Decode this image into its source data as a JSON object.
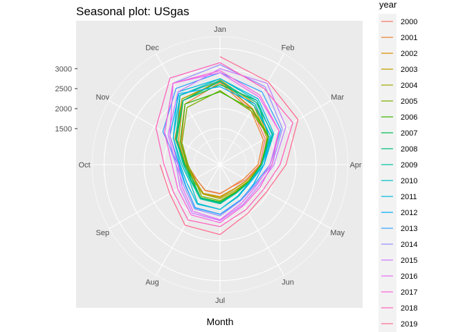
{
  "chart_data": {
    "type": "line",
    "coord": "polar",
    "title": "Seasonal plot: USgas",
    "xlabel": "Month",
    "ylabel": "",
    "legend_title": "year",
    "legend_position": "right",
    "grid": true,
    "rlim": [
      600,
      3800
    ],
    "r_ticks": [
      1500,
      2000,
      2500,
      3000
    ],
    "categories": [
      "Jan",
      "Feb",
      "Mar",
      "Apr",
      "May",
      "Jun",
      "Jul",
      "Aug",
      "Sep",
      "Oct",
      "Nov",
      "Dec"
    ],
    "series": [
      {
        "name": "2000",
        "color": "#F8766D",
        "values": [
          2700,
          2200,
          1900,
          1600,
          1350,
          1230,
          1320,
          1340,
          1300,
          1460,
          1850,
          2600
        ]
      },
      {
        "name": "2001",
        "color": "#EA8331",
        "values": [
          2650,
          2150,
          1850,
          1550,
          1300,
          1220,
          1330,
          1350,
          1290,
          1420,
          1720,
          2350
        ]
      },
      {
        "name": "2002",
        "color": "#D89000",
        "values": [
          2680,
          2220,
          2000,
          1650,
          1380,
          1300,
          1400,
          1430,
          1350,
          1480,
          1900,
          2500
        ]
      },
      {
        "name": "2003",
        "color": "#C09B00",
        "values": [
          2720,
          2350,
          1980,
          1620,
          1380,
          1310,
          1420,
          1440,
          1330,
          1460,
          1800,
          2450
        ]
      },
      {
        "name": "2004",
        "color": "#A3A500",
        "values": [
          2680,
          2300,
          1950,
          1650,
          1420,
          1350,
          1450,
          1450,
          1380,
          1480,
          1850,
          2500
        ]
      },
      {
        "name": "2005",
        "color": "#7CAE00",
        "values": [
          2450,
          2150,
          2000,
          1650,
          1420,
          1380,
          1500,
          1520,
          1330,
          1400,
          1700,
          2250
        ]
      },
      {
        "name": "2006",
        "color": "#39B600",
        "values": [
          2420,
          2200,
          2000,
          1620,
          1440,
          1400,
          1530,
          1560,
          1390,
          1430,
          1750,
          2350
        ]
      },
      {
        "name": "2007",
        "color": "#00BB4E",
        "values": [
          2600,
          2450,
          2000,
          1650,
          1460,
          1410,
          1540,
          1560,
          1420,
          1480,
          1850,
          2450
        ]
      },
      {
        "name": "2008",
        "color": "#00BF7D",
        "values": [
          2680,
          2400,
          2120,
          1700,
          1460,
          1420,
          1560,
          1570,
          1380,
          1500,
          1880,
          2450
        ]
      },
      {
        "name": "2009",
        "color": "#00C1A3",
        "values": [
          2700,
          2300,
          2050,
          1650,
          1450,
          1420,
          1580,
          1590,
          1440,
          1520,
          1870,
          2600
        ]
      },
      {
        "name": "2010",
        "color": "#00BFC4",
        "values": [
          2750,
          2450,
          2100,
          1650,
          1460,
          1500,
          1720,
          1720,
          1470,
          1560,
          1950,
          2600
        ]
      },
      {
        "name": "2011",
        "color": "#00BAE0",
        "values": [
          2750,
          2500,
          2150,
          1700,
          1480,
          1520,
          1720,
          1740,
          1550,
          1600,
          1950,
          2700
        ]
      },
      {
        "name": "2012",
        "color": "#00B0F6",
        "values": [
          2550,
          2350,
          2050,
          1700,
          1570,
          1640,
          1840,
          1850,
          1600,
          1620,
          2050,
          2650
        ]
      },
      {
        "name": "2013",
        "color": "#35A2FF",
        "values": [
          2900,
          2700,
          2350,
          1850,
          1590,
          1620,
          1840,
          1840,
          1610,
          1650,
          2250,
          2800
        ]
      },
      {
        "name": "2014",
        "color": "#9590FF",
        "values": [
          3100,
          2850,
          2400,
          1900,
          1620,
          1640,
          1880,
          1880,
          1650,
          1700,
          2200,
          2950
        ]
      },
      {
        "name": "2015",
        "color": "#C77CFF",
        "values": [
          3000,
          2950,
          2500,
          1950,
          1700,
          1750,
          2000,
          2000,
          1750,
          1700,
          2100,
          2700
        ]
      },
      {
        "name": "2016",
        "color": "#E76BF3",
        "values": [
          2900,
          2550,
          2300,
          1850,
          1650,
          1700,
          1980,
          1950,
          1700,
          1650,
          2050,
          2950
        ]
      },
      {
        "name": "2017",
        "color": "#FA62DB",
        "values": [
          2950,
          2600,
          2300,
          1900,
          1750,
          1780,
          2050,
          2050,
          1820,
          1800,
          2200,
          2950
        ]
      },
      {
        "name": "2018",
        "color": "#FF62BC",
        "values": [
          3150,
          2800,
          2700,
          2100,
          1850,
          1900,
          2150,
          2200,
          1950,
          2000,
          2450,
          3100
        ]
      },
      {
        "name": "2019",
        "color": "#FF6C91",
        "values": [
          3300,
          3000,
          2850,
          2250,
          1950,
          2000,
          2350,
          2350,
          2050,
          2100,
          null,
          null
        ]
      }
    ]
  }
}
